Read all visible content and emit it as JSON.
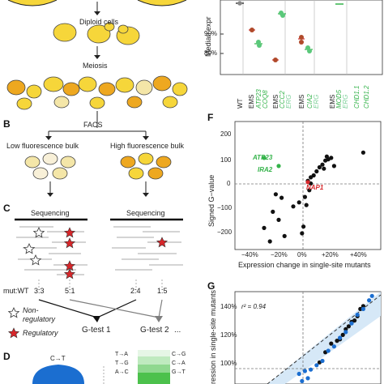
{
  "panels": {
    "A": {
      "diploid_label": "Diploid cells",
      "meiosis_label": "Meiosis"
    },
    "B": {
      "letter": "B",
      "facs_label": "FACS",
      "low_label": "Low fluorescence bulk",
      "high_label": "High fluorescence bulk"
    },
    "C": {
      "letter": "C",
      "sequencing_left": "Sequencing",
      "sequencing_right": "Sequencing",
      "mut_wt_label": "mut:WT",
      "ratios": [
        "3:3",
        "5:1",
        "2:4",
        "1:5"
      ],
      "legend_nonreg_1": "Non-",
      "legend_nonreg_2": "regulatory",
      "legend_reg": "Regulatory",
      "gtest1": "G-test 1",
      "gtest2": "G-test 2",
      "ellipsis": "..."
    },
    "D": {
      "letter": "D",
      "center_sub": "C→T",
      "subs": [
        "T→A",
        "T→G",
        "A→C",
        "C→G",
        "C→A",
        "G→T"
      ]
    },
    "E": {
      "ylabel": "Median expr",
      "yticks": [
        "90%",
        "80%"
      ],
      "xticks": [
        "WT",
        "EMS",
        "ATP23",
        "COQ8",
        "EMS",
        "CCC2",
        "ERG",
        "EMS",
        "CIA2",
        "ERG",
        "EMS",
        "MOD5",
        "ERG",
        "CHD1.1",
        "CHD1.2"
      ]
    },
    "F": {
      "letter": "F",
      "ylabel": "Signed G−value",
      "xlabel": "Expression change in single-site mutants",
      "yticks": [
        "200",
        "100",
        "0",
        "−100",
        "−200"
      ],
      "xticks": [
        "−40%",
        "−20%",
        "0%",
        "+20%",
        "+40%"
      ],
      "annotations": [
        "ATP23",
        "IRA2",
        "NAP1"
      ]
    },
    "G": {
      "letter": "G",
      "ylabel": "ression in single-site mutants",
      "annotation": "r² = 0.94",
      "yticks": [
        "140%",
        "120%",
        "100%"
      ]
    }
  },
  "colors": {
    "cell_fill": "#f6d63a",
    "cell_fill_pale": "#f4e6a8",
    "cell_orange": "#eea820",
    "star_red": "#d7262a",
    "green": "#34b34a",
    "red": "#d7262a",
    "blue": "#1b6ed0",
    "gray_arrow": "#7f7f7f"
  },
  "chart_data": [
    {
      "type": "scatter",
      "panel": "F",
      "xlabel": "Expression change in single-site mutants",
      "ylabel": "Signed G−value",
      "xlim": [
        -50,
        50
      ],
      "ylim": [
        -260,
        215
      ],
      "series": [
        {
          "color": "#111111",
          "points": [
            [
              -22,
              -55
            ],
            [
              -18,
              -68
            ],
            [
              -24,
              -120
            ],
            [
              -20,
              -150
            ],
            [
              -30,
              -180
            ],
            [
              -16,
              -210
            ],
            [
              -26,
              -230
            ],
            [
              -3,
              -175
            ],
            [
              -4,
              -200
            ],
            [
              -2,
              -65
            ],
            [
              1,
              -40
            ],
            [
              2,
              -15
            ],
            [
              4,
              15
            ],
            [
              6,
              30
            ],
            [
              8,
              45
            ],
            [
              10,
              55
            ],
            [
              11,
              40
            ],
            [
              12,
              70
            ],
            [
              14,
              75
            ],
            [
              16,
              80
            ],
            [
              13,
              85
            ],
            [
              18,
              50
            ],
            [
              38,
              100
            ],
            [
              2,
              8
            ],
            [
              0,
              -5
            ],
            [
              -1,
              -95
            ],
            [
              -6,
              -85
            ],
            [
              -10,
              -100
            ]
          ]
        },
        {
          "color": "#34b34a",
          "points": [
            [
              -30,
              80
            ],
            [
              -20,
              50
            ]
          ]
        },
        {
          "color": "#d7262a",
          "points": [
            [
              0,
              -10
            ]
          ]
        }
      ]
    },
    {
      "type": "scatter",
      "panel": "G",
      "annotation": "r² = 0.94",
      "ylabel": "ression in single-site mutants",
      "xlim": [
        0,
        100
      ],
      "ylim": [
        88,
        152
      ],
      "series": [
        {
          "color": "#111111",
          "points": [
            [
              58,
              103
            ],
            [
              62,
              110
            ],
            [
              66,
              116
            ],
            [
              70,
              118
            ],
            [
              74,
              122
            ],
            [
              76,
              126
            ],
            [
              78,
              128
            ],
            [
              80,
              131
            ],
            [
              84,
              135
            ],
            [
              86,
              140
            ],
            [
              88,
              142
            ],
            [
              72,
              119
            ],
            [
              82,
              132
            ]
          ]
        },
        {
          "color": "#1b6ed0",
          "points": [
            [
              44,
              95
            ],
            [
              48,
              97
            ],
            [
              52,
              98
            ],
            [
              56,
              101
            ],
            [
              60,
              104
            ],
            [
              64,
              111
            ],
            [
              68,
              114
            ],
            [
              72,
              120
            ],
            [
              76,
              124
            ],
            [
              80,
              130
            ],
            [
              84,
              136
            ],
            [
              88,
              140
            ],
            [
              92,
              146
            ],
            [
              94,
              149
            ],
            [
              50,
              92
            ],
            [
              46,
              90
            ]
          ]
        }
      ]
    }
  ]
}
